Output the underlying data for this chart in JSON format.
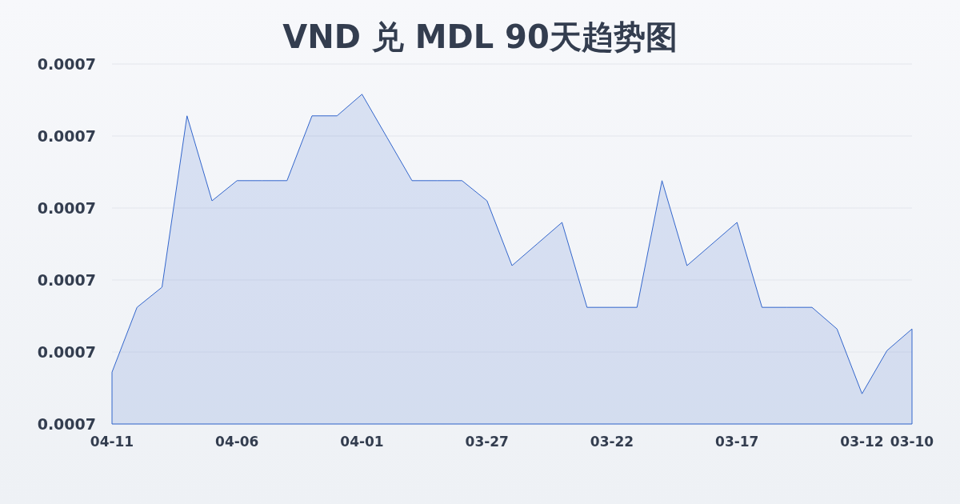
{
  "chart_data": {
    "type": "area",
    "title": "VND 兑 MDL 90天趋势图",
    "categories": [
      "04-11",
      null,
      null,
      null,
      null,
      "04-06",
      null,
      null,
      null,
      null,
      "04-01",
      null,
      null,
      null,
      null,
      "03-27",
      null,
      null,
      null,
      null,
      "03-22",
      null,
      null,
      null,
      null,
      "03-17",
      null,
      null,
      null,
      null,
      "03-12",
      null,
      "03-10"
    ],
    "values": [
      0.0006986,
      0.0007031,
      0.0007045,
      0.0007164,
      0.0007105,
      0.0007119,
      0.0007119,
      0.0007119,
      0.0007164,
      0.0007164,
      0.0007179,
      0.0007149,
      0.0007119,
      0.0007119,
      0.0007119,
      0.0007105,
      0.000706,
      0.0007075,
      0.000709,
      0.0007031,
      0.0007031,
      0.0007031,
      0.0007119,
      0.000706,
      0.0007075,
      0.000709,
      0.0007031,
      0.0007031,
      0.0007031,
      0.0007016,
      0.0006971,
      0.0007001,
      0.0007016
    ],
    "color": "#3366cc",
    "ylim": [
      0.000695,
      0.00072
    ],
    "yticks": [
      {
        "value": 0.000695,
        "label": "0.0007"
      },
      {
        "value": 0.0007,
        "label": "0.0007"
      },
      {
        "value": 0.000705,
        "label": "0.0007"
      },
      {
        "value": 0.00071,
        "label": "0.0007"
      },
      {
        "value": 0.000715,
        "label": "0.0007"
      },
      {
        "value": 0.00072,
        "label": "0.0007"
      }
    ],
    "grid": "y"
  }
}
